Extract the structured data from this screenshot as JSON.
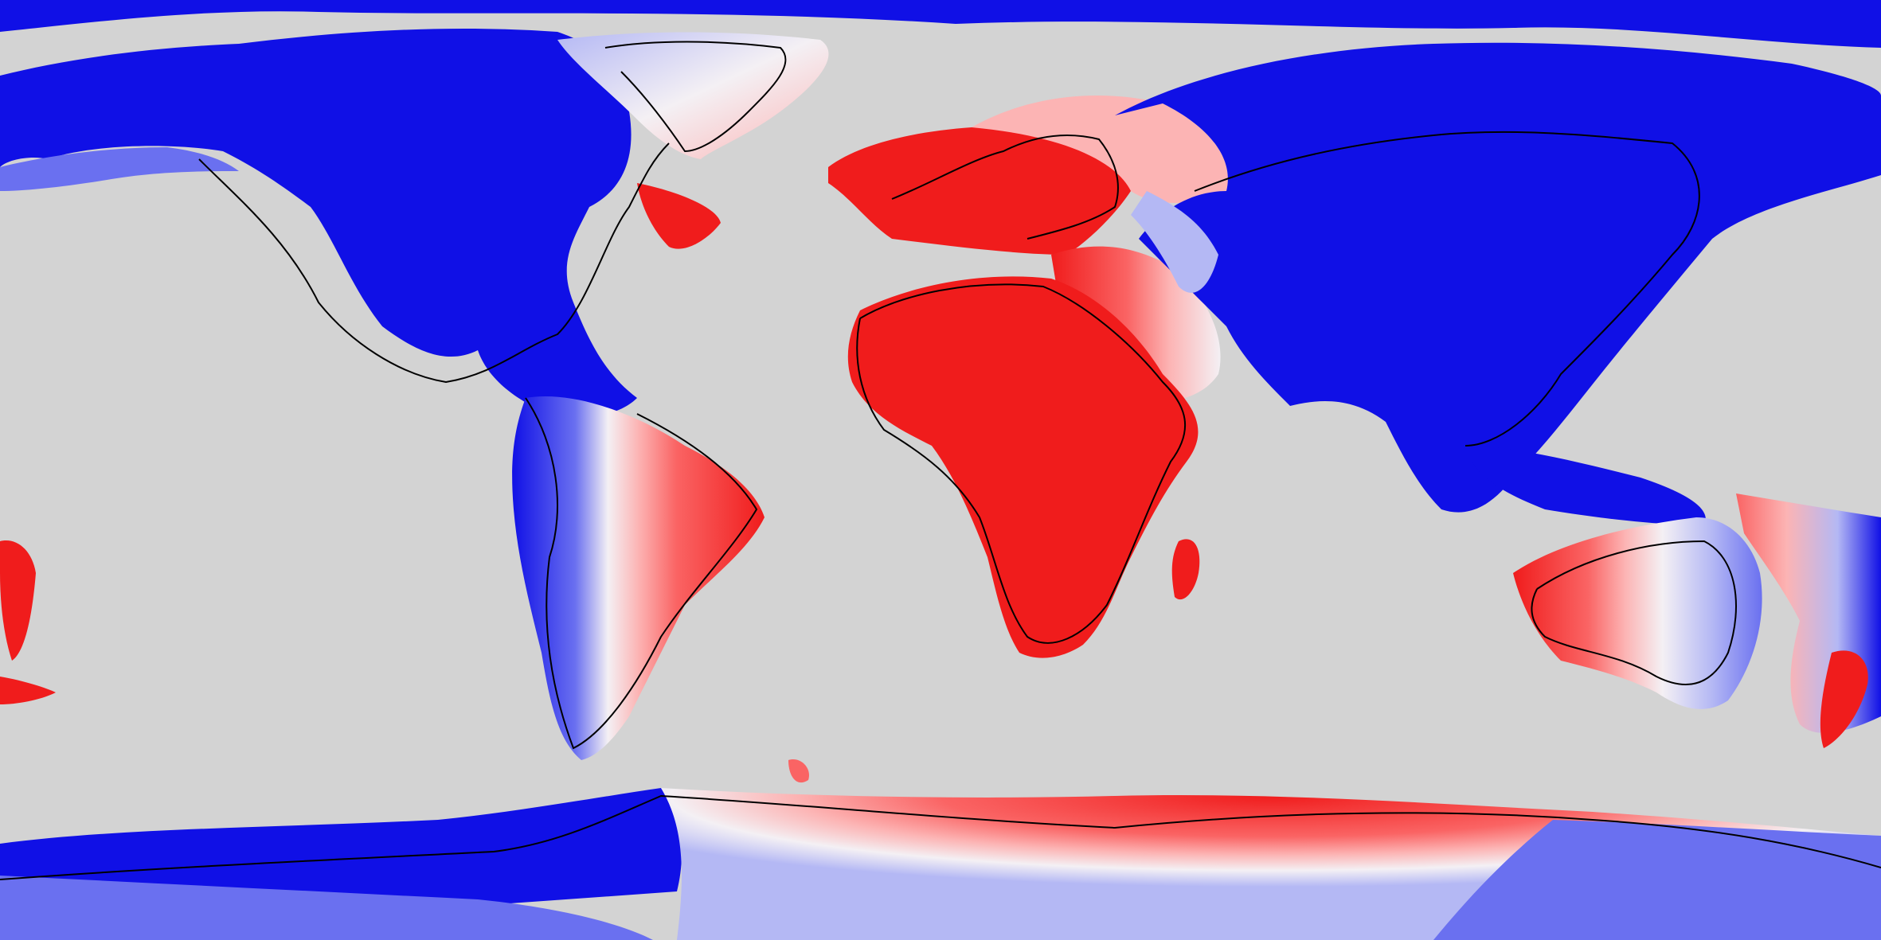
{
  "map": {
    "projection": "equirectangular",
    "ocean_color": "#d3d3d3",
    "coastline_color": "#000000",
    "palette": {
      "strong_positive": "#f01c1c",
      "positive": "#fa6464",
      "weak_positive": "#fcb4b4",
      "near_zero": "#f4f0f4",
      "weak_negative": "#b4b8f4",
      "negative": "#6a70f0",
      "strong_negative": "#1010e6"
    },
    "regions": [
      {
        "id": "north-america",
        "value": "strong_negative"
      },
      {
        "id": "greenland",
        "value": "weak_positive"
      },
      {
        "id": "south-america-west",
        "value": "strong_negative"
      },
      {
        "id": "south-america-east",
        "value": "strong_positive"
      },
      {
        "id": "europe-west",
        "value": "strong_positive"
      },
      {
        "id": "africa",
        "value": "strong_positive"
      },
      {
        "id": "middle-east",
        "value": "positive"
      },
      {
        "id": "asia",
        "value": "strong_negative"
      },
      {
        "id": "southeast-asia",
        "value": "strong_negative"
      },
      {
        "id": "australia-west",
        "value": "strong_positive"
      },
      {
        "id": "australia-east",
        "value": "negative"
      },
      {
        "id": "new-zealand",
        "value": "positive"
      },
      {
        "id": "antarctica-west",
        "value": "strong_negative"
      },
      {
        "id": "antarctica-central",
        "value": "strong_positive"
      },
      {
        "id": "antarctica-east",
        "value": "negative"
      },
      {
        "id": "arctic",
        "value": "strong_negative"
      }
    ]
  }
}
